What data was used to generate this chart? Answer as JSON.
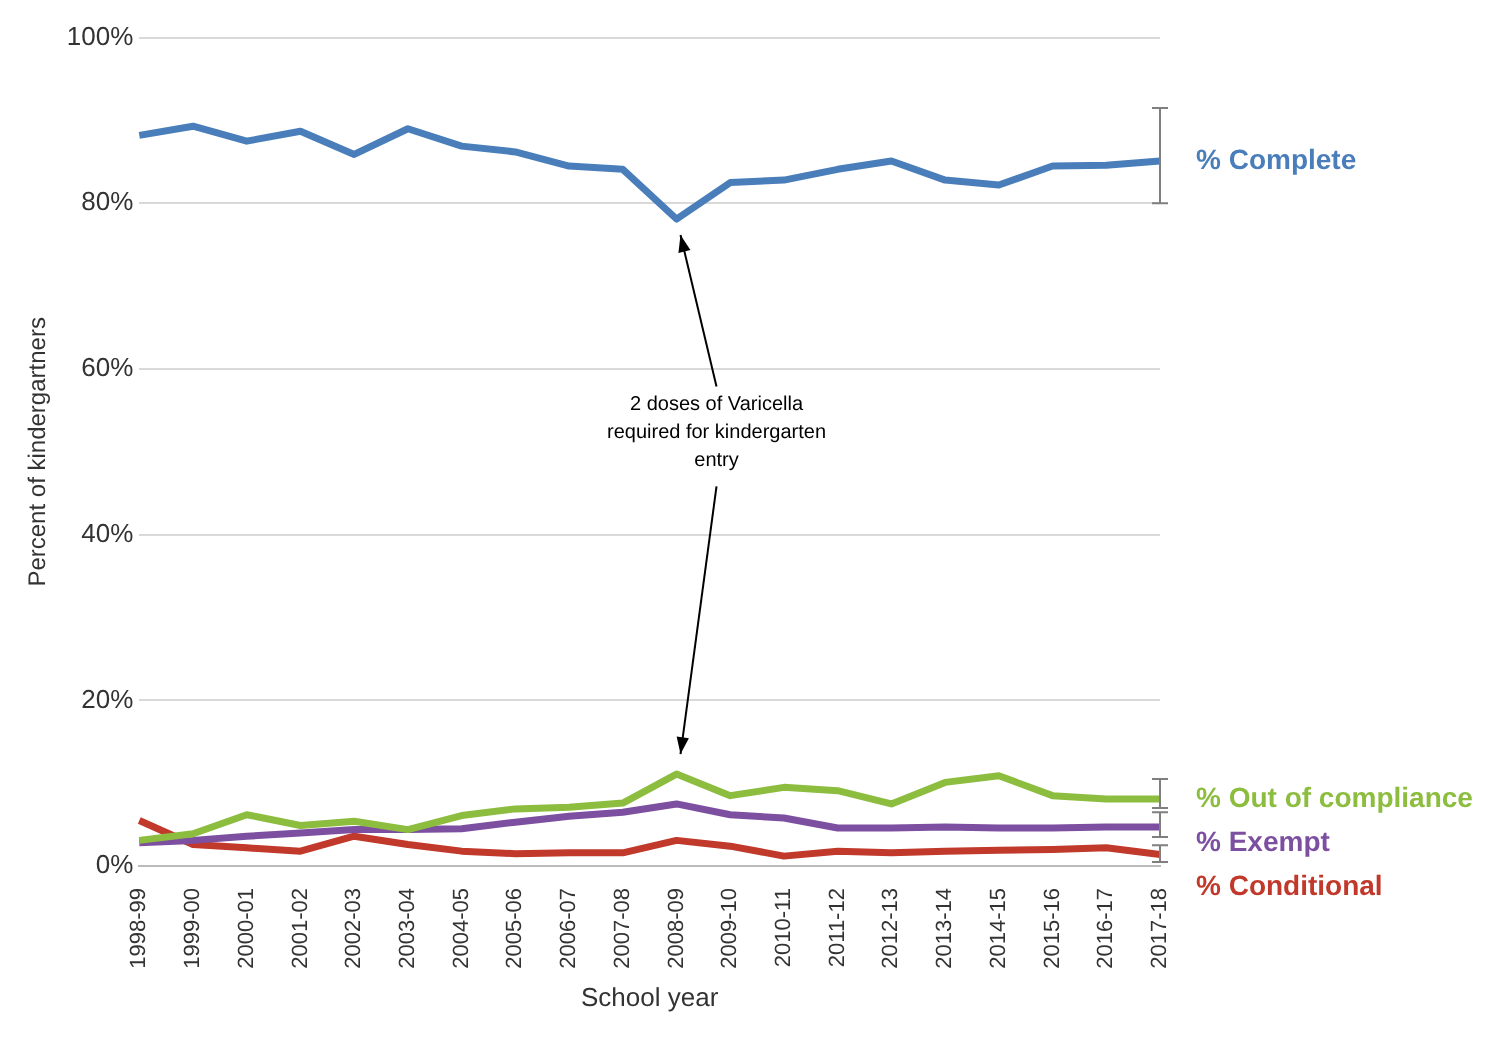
{
  "chart_data": {
    "type": "line",
    "xlabel": "School year",
    "ylabel": "Percent of kindergartners",
    "categories": [
      "1998-99",
      "1999-00",
      "2000-01",
      "2001-02",
      "2002-03",
      "2003-04",
      "2004-05",
      "2005-06",
      "2006-07",
      "2007-08",
      "2008-09",
      "2009-10",
      "2010-11",
      "2011-12",
      "2012-13",
      "2013-14",
      "2014-15",
      "2015-16",
      "2016-17",
      "2017-18"
    ],
    "series": [
      {
        "name": "% Complete",
        "color": "#4a7ebb",
        "values": [
          88.2,
          89.3,
          87.5,
          88.7,
          85.9,
          89.0,
          86.9,
          86.2,
          84.5,
          84.1,
          78.1,
          82.5,
          82.8,
          84.1,
          85.1,
          82.8,
          82.2,
          84.5,
          84.6,
          85.1
        ],
        "errors": [
          null,
          null,
          null,
          null,
          null,
          null,
          null,
          null,
          null,
          null,
          null,
          null,
          null,
          null,
          null,
          null,
          null,
          null,
          null,
          [
            80,
            91.5
          ]
        ]
      },
      {
        "name": "% Out of compliance",
        "color": "#8cbd3f",
        "values": [
          3.1,
          3.9,
          6.2,
          4.9,
          5.4,
          4.4,
          6.1,
          6.9,
          7.1,
          7.6,
          11.1,
          8.5,
          9.5,
          9.1,
          7.5,
          10.1,
          10.9,
          8.5,
          8.1,
          8.1
        ],
        "errors": [
          null,
          null,
          null,
          null,
          null,
          null,
          null,
          null,
          null,
          null,
          null,
          null,
          null,
          null,
          null,
          null,
          null,
          null,
          null,
          [
            7,
            10.5
          ]
        ]
      },
      {
        "name": "% Exempt",
        "color": "#7d4fa0",
        "values": [
          2.8,
          3.1,
          3.6,
          4.0,
          4.4,
          4.4,
          4.5,
          5.3,
          6.0,
          6.5,
          7.5,
          6.2,
          5.8,
          4.6,
          4.6,
          4.7,
          4.6,
          4.6,
          4.7,
          4.7
        ],
        "errors": [
          null,
          null,
          null,
          null,
          null,
          null,
          null,
          null,
          null,
          null,
          null,
          null,
          null,
          null,
          null,
          null,
          null,
          null,
          null,
          [
            3.5,
            6.5
          ]
        ]
      },
      {
        "name": "% Conditional",
        "color": "#c0392b",
        "values": [
          5.5,
          2.6,
          2.2,
          1.8,
          3.6,
          2.6,
          1.8,
          1.5,
          1.6,
          1.6,
          3.1,
          2.4,
          1.2,
          1.8,
          1.6,
          1.8,
          1.9,
          2.0,
          2.2,
          1.4
        ],
        "errors": [
          null,
          null,
          null,
          null,
          null,
          null,
          null,
          null,
          null,
          null,
          null,
          null,
          null,
          null,
          null,
          null,
          null,
          null,
          null,
          [
            0.5,
            2.5
          ]
        ]
      }
    ],
    "ylim": [
      0,
      100
    ],
    "yticks": [
      {
        "value": 0,
        "label": "0%"
      },
      {
        "value": 20,
        "label": "20%"
      },
      {
        "value": 40,
        "label": "40%"
      },
      {
        "value": 60,
        "label": "60%"
      },
      {
        "value": 80,
        "label": "80%"
      },
      {
        "value": 100,
        "label": "100%"
      }
    ],
    "annotations": [
      {
        "text": "2 doses of Varicella required for kindergarten entry",
        "x": "2008-09",
        "y": 78.1
      }
    ],
    "grid": "y",
    "legend": false,
    "marker": "none",
    "line_style": "solid"
  }
}
